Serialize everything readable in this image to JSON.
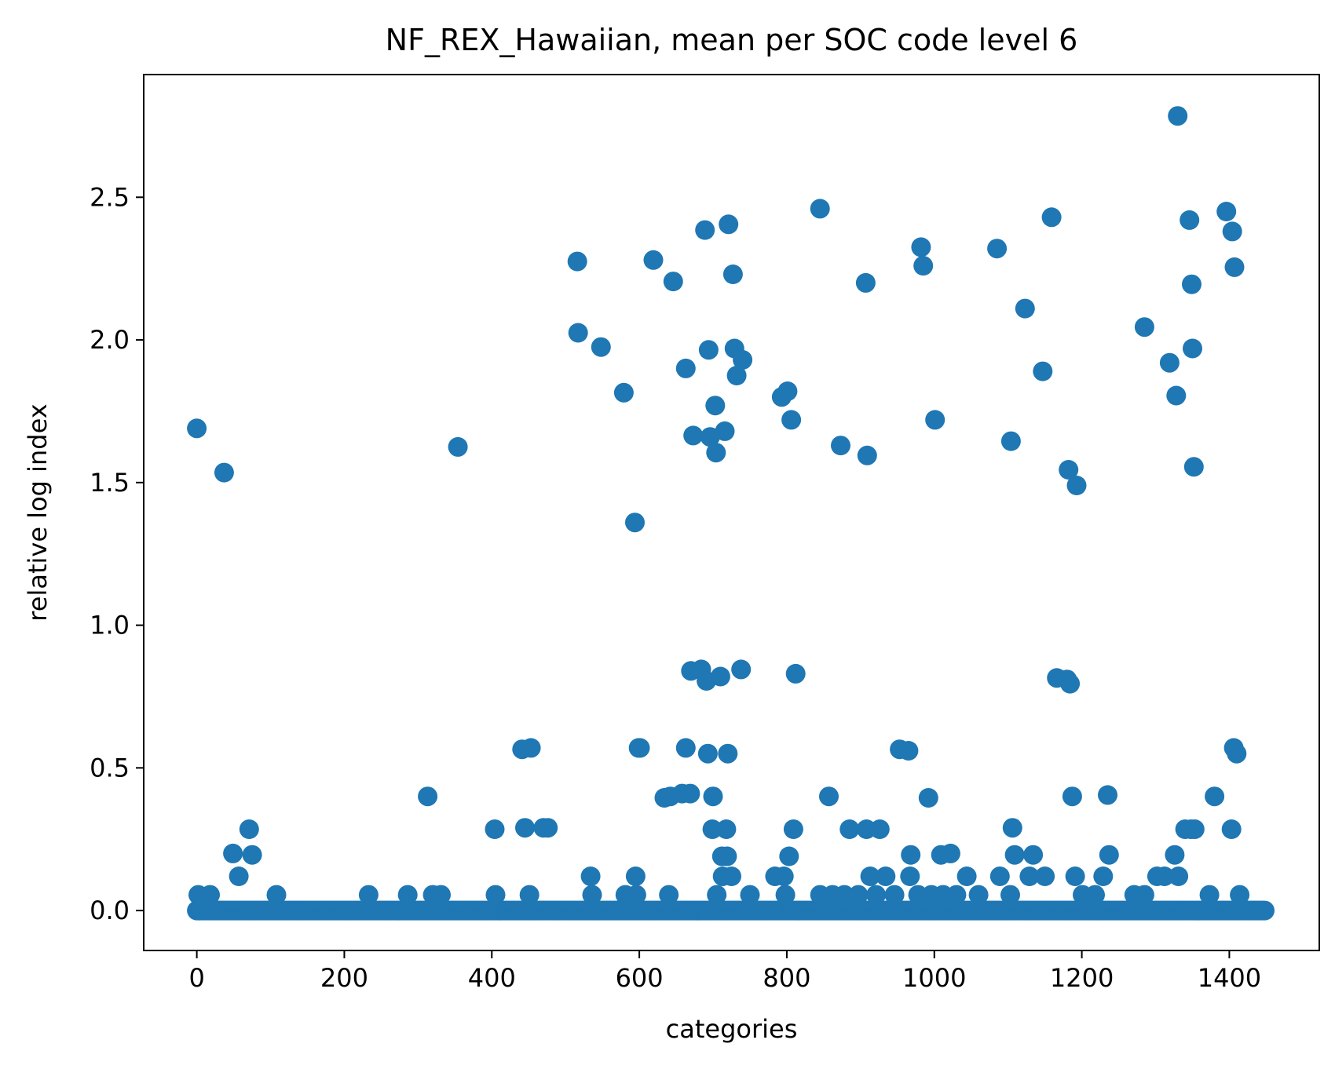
{
  "chart_data": {
    "type": "scatter",
    "title": "NF_REX_Hawaiian, mean per SOC code level 6",
    "xlabel": "categories",
    "ylabel": "relative log index",
    "xlim": [
      -72,
      1522
    ],
    "ylim": [
      -0.14,
      2.93
    ],
    "xticks": [
      0,
      200,
      400,
      600,
      800,
      1000,
      1200,
      1400
    ],
    "xtick_labels": [
      "0",
      "200",
      "400",
      "600",
      "800",
      "1000",
      "1200",
      "1400"
    ],
    "yticks": [
      0.0,
      0.5,
      1.0,
      1.5,
      2.0,
      2.5
    ],
    "ytick_labels": [
      "0.0",
      "0.5",
      "1.0",
      "1.5",
      "2.0",
      "2.5"
    ],
    "grid": false,
    "legend": null,
    "color": "#1f77b4",
    "series": [
      {
        "baseline": {
          "y": 0.0,
          "x_start": 0,
          "x_end": 1449,
          "step": 2
        },
        "points": [
          [
            0,
            1.69
          ],
          [
            2,
            0.055
          ],
          [
            18,
            0.055
          ],
          [
            37,
            1.535
          ],
          [
            49,
            0.2
          ],
          [
            57,
            0.12
          ],
          [
            71,
            0.285
          ],
          [
            75,
            0.195
          ],
          [
            108,
            0.055
          ],
          [
            233,
            0.055
          ],
          [
            286,
            0.055
          ],
          [
            313,
            0.4
          ],
          [
            320,
            0.055
          ],
          [
            331,
            0.055
          ],
          [
            354,
            1.625
          ],
          [
            404,
            0.285
          ],
          [
            405,
            0.055
          ],
          [
            441,
            0.565
          ],
          [
            445,
            0.29
          ],
          [
            451,
            0.055
          ],
          [
            453,
            0.57
          ],
          [
            470,
            0.29
          ],
          [
            476,
            0.29
          ],
          [
            516,
            2.275
          ],
          [
            517,
            2.025
          ],
          [
            534,
            0.12
          ],
          [
            536,
            0.055
          ],
          [
            548,
            1.975
          ],
          [
            579,
            1.815
          ],
          [
            581,
            0.055
          ],
          [
            594,
            1.36
          ],
          [
            595,
            0.12
          ],
          [
            596,
            0.055
          ],
          [
            599,
            0.57
          ],
          [
            601,
            0.57
          ],
          [
            619,
            2.28
          ],
          [
            634,
            0.395
          ],
          [
            640,
            0.055
          ],
          [
            642,
            0.4
          ],
          [
            646,
            2.205
          ],
          [
            658,
            0.41
          ],
          [
            663,
            1.9
          ],
          [
            663,
            0.57
          ],
          [
            669,
            0.41
          ],
          [
            670,
            0.84
          ],
          [
            673,
            1.665
          ],
          [
            684,
            0.845
          ],
          [
            689,
            2.385
          ],
          [
            691,
            0.805
          ],
          [
            693,
            0.55
          ],
          [
            694,
            1.965
          ],
          [
            696,
            1.66
          ],
          [
            699,
            0.285
          ],
          [
            700,
            0.4
          ],
          [
            703,
            1.77
          ],
          [
            704,
            1.605
          ],
          [
            705,
            0.055
          ],
          [
            710,
            0.82
          ],
          [
            712,
            0.19
          ],
          [
            713,
            0.12
          ],
          [
            716,
            1.68
          ],
          [
            718,
            0.285
          ],
          [
            719,
            0.19
          ],
          [
            720,
            0.55
          ],
          [
            721,
            2.405
          ],
          [
            725,
            0.12
          ],
          [
            727,
            2.23
          ],
          [
            729,
            1.97
          ],
          [
            732,
            1.875
          ],
          [
            738,
            0.845
          ],
          [
            740,
            1.93
          ],
          [
            750,
            0.055
          ],
          [
            784,
            0.12
          ],
          [
            793,
            1.8
          ],
          [
            796,
            0.12
          ],
          [
            798,
            0.055
          ],
          [
            801,
            1.82
          ],
          [
            803,
            0.19
          ],
          [
            806,
            1.72
          ],
          [
            809,
            0.285
          ],
          [
            812,
            0.83
          ],
          [
            845,
            2.46
          ],
          [
            845,
            0.055
          ],
          [
            857,
            0.4
          ],
          [
            862,
            0.055
          ],
          [
            873,
            1.63
          ],
          [
            878,
            0.055
          ],
          [
            885,
            0.285
          ],
          [
            897,
            0.055
          ],
          [
            907,
            2.2
          ],
          [
            908,
            0.285
          ],
          [
            909,
            1.595
          ],
          [
            913,
            0.12
          ],
          [
            921,
            0.055
          ],
          [
            926,
            0.285
          ],
          [
            934,
            0.12
          ],
          [
            946,
            0.055
          ],
          [
            953,
            0.565
          ],
          [
            965,
            0.56
          ],
          [
            967,
            0.12
          ],
          [
            968,
            0.195
          ],
          [
            978,
            0.055
          ],
          [
            982,
            2.325
          ],
          [
            985,
            2.26
          ],
          [
            992,
            0.395
          ],
          [
            996,
            0.055
          ],
          [
            1001,
            1.72
          ],
          [
            1009,
            0.195
          ],
          [
            1012,
            0.055
          ],
          [
            1022,
            0.2
          ],
          [
            1030,
            0.055
          ],
          [
            1044,
            0.12
          ],
          [
            1060,
            0.055
          ],
          [
            1085,
            2.32
          ],
          [
            1089,
            0.12
          ],
          [
            1103,
            0.055
          ],
          [
            1104,
            1.645
          ],
          [
            1106,
            0.29
          ],
          [
            1109,
            0.195
          ],
          [
            1123,
            2.11
          ],
          [
            1129,
            0.12
          ],
          [
            1134,
            0.195
          ],
          [
            1147,
            1.89
          ],
          [
            1150,
            0.12
          ],
          [
            1159,
            2.43
          ],
          [
            1166,
            0.815
          ],
          [
            1180,
            0.81
          ],
          [
            1182,
            1.545
          ],
          [
            1184,
            0.795
          ],
          [
            1187,
            0.4
          ],
          [
            1191,
            0.12
          ],
          [
            1193,
            1.49
          ],
          [
            1201,
            0.055
          ],
          [
            1218,
            0.055
          ],
          [
            1229,
            0.12
          ],
          [
            1235,
            0.405
          ],
          [
            1237,
            0.195
          ],
          [
            1271,
            0.055
          ],
          [
            1285,
            0.055
          ],
          [
            1285,
            2.045
          ],
          [
            1302,
            0.12
          ],
          [
            1312,
            0.12
          ],
          [
            1319,
            1.92
          ],
          [
            1326,
            0.195
          ],
          [
            1328,
            1.805
          ],
          [
            1330,
            2.785
          ],
          [
            1331,
            0.12
          ],
          [
            1340,
            0.285
          ],
          [
            1346,
            2.42
          ],
          [
            1348,
            0.285
          ],
          [
            1349,
            2.195
          ],
          [
            1350,
            1.97
          ],
          [
            1352,
            1.555
          ],
          [
            1353,
            0.285
          ],
          [
            1373,
            0.055
          ],
          [
            1380,
            0.4
          ],
          [
            1396,
            2.45
          ],
          [
            1403,
            0.285
          ],
          [
            1404,
            2.38
          ],
          [
            1406,
            0.57
          ],
          [
            1407,
            2.255
          ],
          [
            1410,
            0.55
          ],
          [
            1414,
            0.055
          ]
        ]
      }
    ]
  }
}
